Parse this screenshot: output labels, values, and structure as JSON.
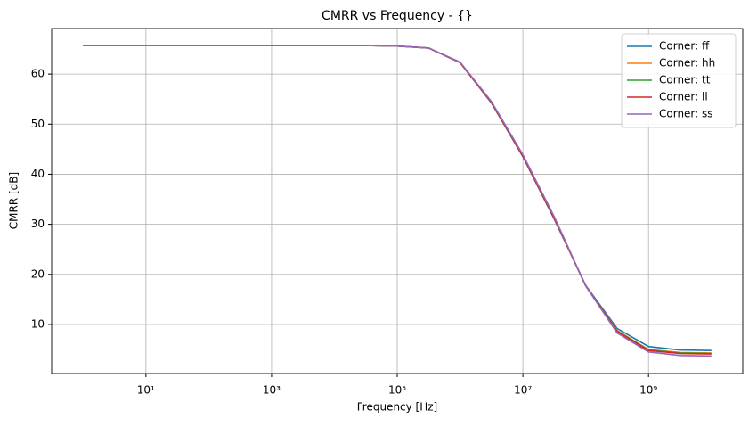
{
  "chart_data": {
    "type": "line",
    "title": "CMRR vs Frequency - {}",
    "xlabel": "Frequency [Hz]",
    "ylabel": "CMRR [dB]",
    "x": [
      1,
      3.162,
      10,
      31.62,
      100,
      316.2,
      1000,
      3162,
      10000,
      31620,
      100000,
      316200,
      1000000,
      3162000,
      10000000,
      31620000,
      100000000,
      316200000,
      1000000000,
      3162000000,
      10000000000
    ],
    "series": [
      {
        "name": "Corner: ff",
        "color": "#1f77b4",
        "values": [
          65.7,
          65.7,
          65.7,
          65.7,
          65.7,
          65.7,
          65.7,
          65.7,
          65.7,
          65.7,
          65.6,
          65.2,
          62.3,
          54.2,
          43.5,
          31.0,
          17.8,
          9.2,
          5.6,
          4.9,
          4.8
        ]
      },
      {
        "name": "Corner: hh",
        "color": "#ff7f0e",
        "values": [
          65.7,
          65.7,
          65.7,
          65.7,
          65.7,
          65.7,
          65.7,
          65.7,
          65.7,
          65.7,
          65.6,
          65.2,
          62.3,
          54.3,
          43.6,
          31.2,
          17.7,
          8.8,
          5.0,
          4.4,
          4.3
        ]
      },
      {
        "name": "Corner: tt",
        "color": "#2ca02c",
        "values": [
          65.7,
          65.7,
          65.7,
          65.7,
          65.7,
          65.7,
          65.7,
          65.7,
          65.7,
          65.7,
          65.6,
          65.2,
          62.3,
          54.3,
          43.6,
          31.2,
          17.7,
          8.7,
          4.9,
          4.3,
          4.2
        ]
      },
      {
        "name": "Corner: ll",
        "color": "#d62728",
        "values": [
          65.7,
          65.7,
          65.7,
          65.7,
          65.7,
          65.7,
          65.7,
          65.7,
          65.7,
          65.7,
          65.6,
          65.2,
          62.3,
          54.3,
          43.6,
          31.2,
          17.7,
          8.6,
          4.8,
          4.2,
          4.1
        ]
      },
      {
        "name": "Corner: ss",
        "color": "#9467bd",
        "values": [
          65.7,
          65.7,
          65.7,
          65.7,
          65.7,
          65.7,
          65.7,
          65.7,
          65.7,
          65.7,
          65.6,
          65.2,
          62.4,
          54.5,
          43.9,
          31.5,
          17.7,
          8.3,
          4.5,
          3.8,
          3.7
        ]
      }
    ],
    "xscale": "log",
    "xlim": [
      0.316,
      31600000000
    ],
    "xticks": [
      {
        "value": 10,
        "label": "10¹"
      },
      {
        "value": 1000,
        "label": "10³"
      },
      {
        "value": 100000,
        "label": "10⁵"
      },
      {
        "value": 10000000,
        "label": "10⁷"
      },
      {
        "value": 1000000000,
        "label": "10⁹"
      }
    ],
    "ylim": [
      0.2,
      69.1
    ],
    "yticks": [
      10,
      20,
      30,
      40,
      50,
      60
    ],
    "grid": true,
    "legend": "upper right"
  }
}
